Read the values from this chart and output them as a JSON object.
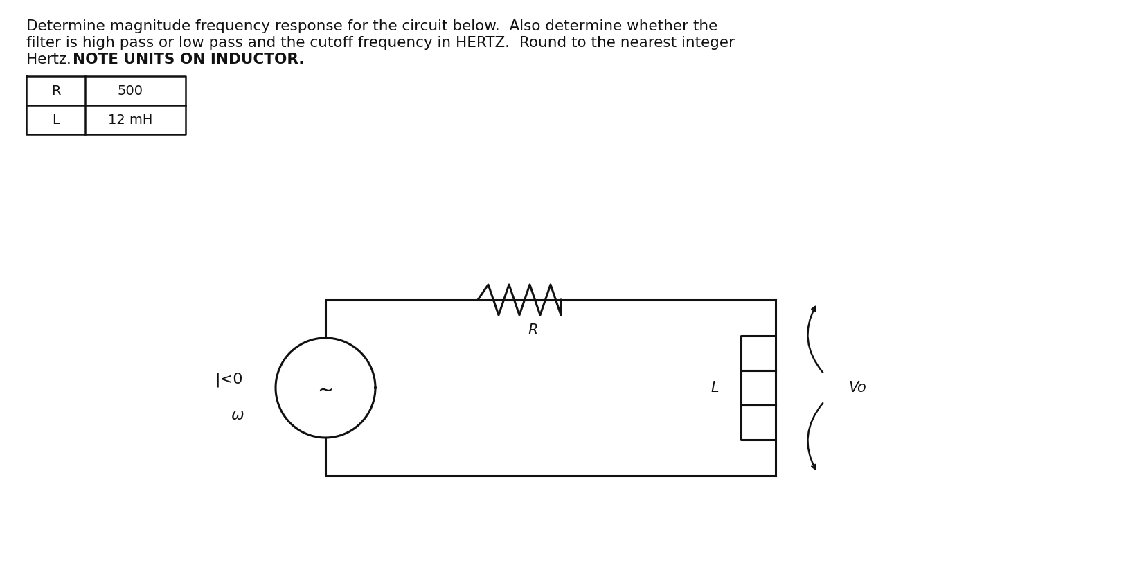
{
  "background_color": "#ffffff",
  "title_line1": "Determine magnitude frequency response for the circuit below.  Also determine whether the",
  "title_line2": "filter is high pass or low pass and the cutoff frequency in HERTZ.  Round to the nearest integer",
  "title_line3_normal": "Hertz.  ",
  "title_line3_bold": "NOTE UNITS ON INDUCTOR.",
  "table_R_label": "R",
  "table_R_value": "500",
  "table_L_label": "L",
  "table_L_value": "12 mH",
  "source_phasor": "|<0",
  "source_omega": "ω",
  "resistor_label": "R",
  "inductor_label": "L",
  "vo_label": "Vo",
  "circuit_color": "#111111",
  "font_size_title": 15.5,
  "font_size_table": 14,
  "font_size_circuit": 15
}
